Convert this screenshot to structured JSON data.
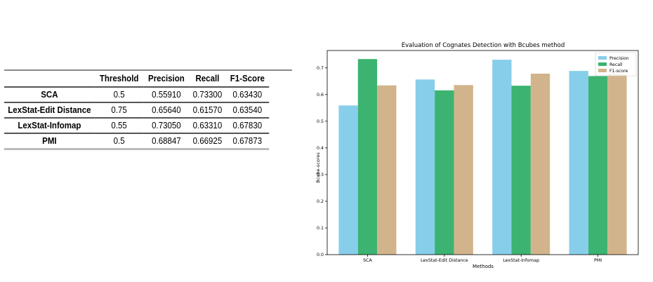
{
  "table": {
    "columns": [
      "",
      "Threshold",
      "Precision",
      "Recall",
      "F1-Score"
    ],
    "rows": [
      [
        "SCA",
        "0.5",
        "0.55910",
        "0.73300",
        "0.63430"
      ],
      [
        "LexStat-Edit Distance",
        "0.75",
        "0.65640",
        "0.61570",
        "0.63540"
      ],
      [
        "LexStat-Infomap",
        "0.55",
        "0.73050",
        "0.63310",
        "0.67830"
      ],
      [
        "PMI",
        "0.5",
        "0.68847",
        "0.66925",
        "0.67873"
      ]
    ]
  },
  "chart_data": {
    "type": "bar",
    "title": "Evaluation of Cognates Detection with Bcubes method",
    "xlabel": "Methods",
    "ylabel": "Bcube-scores",
    "categories": [
      "SCA",
      "LexStat-Edit Distance",
      "LexStat-Infomap",
      "PMI"
    ],
    "series": [
      {
        "name": "Precision",
        "color": "#87ceeb",
        "values": [
          0.5591,
          0.6564,
          0.7305,
          0.68847
        ]
      },
      {
        "name": "Recall",
        "color": "#3cb371",
        "values": [
          0.733,
          0.6157,
          0.6331,
          0.66925
        ]
      },
      {
        "name": "F1-score",
        "color": "#d2b48c",
        "values": [
          0.6343,
          0.6354,
          0.6783,
          0.67873
        ]
      }
    ],
    "ylim": [
      0,
      0.765
    ],
    "yticks": [
      "0.0",
      "0.1",
      "0.2",
      "0.3",
      "0.4",
      "0.5",
      "0.6",
      "0.7"
    ],
    "grid": false,
    "legend": "top-right"
  }
}
